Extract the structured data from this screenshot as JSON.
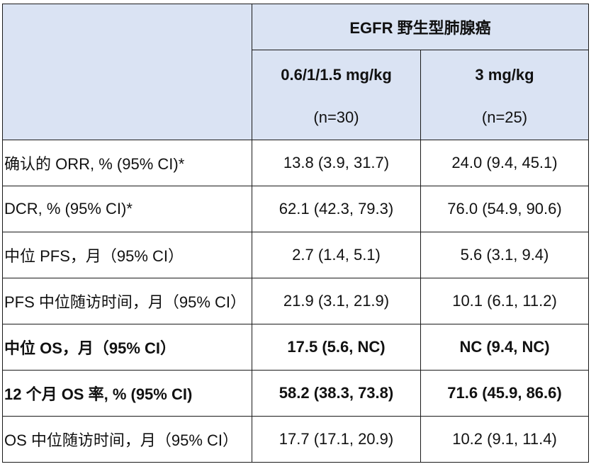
{
  "header": {
    "group_title": "EGFR 野生型肺腺癌",
    "columns": [
      {
        "dose": "0.6/1/1.5 mg/kg",
        "n": "(n=30)"
      },
      {
        "dose": "3 mg/kg",
        "n": "(n=25)"
      }
    ]
  },
  "rows": [
    {
      "label": "确认的 ORR, % (95% CI)*",
      "values": [
        "13.8 (3.9, 31.7)",
        "24.0 (9.4, 45.1)"
      ],
      "bold": false
    },
    {
      "label": "DCR, % (95% CI)*",
      "values": [
        "62.1 (42.3, 79.3)",
        "76.0 (54.9, 90.6)"
      ],
      "bold": false
    },
    {
      "label": "中位 PFS，月（95% CI）",
      "values": [
        "2.7 (1.4, 5.1)",
        "5.6 (3.1, 9.4)"
      ],
      "bold": false
    },
    {
      "label": "PFS 中位随访时间，月（95% CI）",
      "values": [
        "21.9 (3.1, 21.9)",
        "10.1 (6.1, 11.2)"
      ],
      "bold": false
    },
    {
      "label": "中位 OS，月（95% CI）",
      "values": [
        "17.5 (5.6, NC)",
        "NC (9.4, NC)"
      ],
      "bold": true
    },
    {
      "label": "12 个月 OS 率, % (95% CI)",
      "values": [
        "58.2 (38.3, 73.8)",
        "71.6 (45.9, 86.6)"
      ],
      "bold": true
    },
    {
      "label": "OS 中位随访时间，月（95% CI）",
      "values": [
        "17.7 (17.1, 20.9)",
        "10.2 (9.1, 11.4)"
      ],
      "bold": false
    }
  ]
}
